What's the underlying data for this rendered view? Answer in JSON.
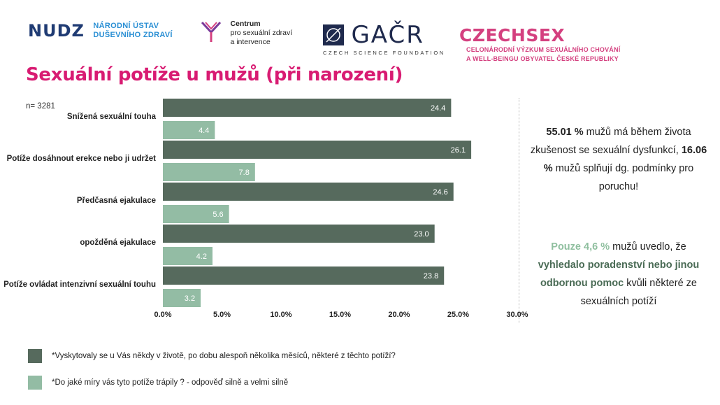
{
  "logos": {
    "nudz_mark": "NUDZ",
    "nudz_line1": "NÁRODNÍ ÚSTAV",
    "nudz_line2": "DUŠEVNÍHO ZDRAVÍ",
    "centrum_line1": "Centrum",
    "centrum_line2": "pro sexuální zdraví",
    "centrum_line3": "a intervence",
    "gacr_word": "GAČR",
    "gacr_sub": "CZECH SCIENCE FOUNDATION",
    "czechsex_word": "CZECHSEX",
    "czechsex_line1": "CELONÁRODNÍ VÝZKUM SEXUÁLNÍHO CHOVÁNÍ",
    "czechsex_line2": "A WELL-BEINGU OBYVATEL ČESKÉ REPUBLIKY"
  },
  "sample": "n= 3281",
  "side": {
    "p1_a": "55.01 %",
    "p1_b": " mužů má během života zkušenost se sexuální dysfunkcí, ",
    "p1_c": "16.06 %",
    "p1_d": " mužů splňují dg. podmínky pro poruchu!",
    "p2_a": "Pouze 4,6 %",
    "p2_b": " mužů uvedlo, že ",
    "p2_c": "vyhledalo poradenství nebo jinou odbornou pomoc",
    "p2_d": " kvůli některé ze sexuálních potíží"
  },
  "colors": {
    "dark": "#566a5d",
    "light": "#93bca4"
  },
  "chart_data": {
    "type": "bar",
    "orientation": "horizontal",
    "title": "Sexuální potíže u mužů (při narození)",
    "categories": [
      "Snížená sexuální touha",
      "Potíže dosáhnout erekce nebo ji udržet",
      "Předčasná ejakulace",
      "opožděná ejakulace",
      "Potíže ovládat intenzivní sexuální touhu"
    ],
    "series": [
      {
        "name": "*Vyskytovaly se u Vás někdy v životě, po dobu alespoň několika měsíců, některé z těchto potíží?",
        "values": [
          24.4,
          26.1,
          24.6,
          23.0,
          23.8
        ],
        "labels": [
          "24.4",
          "26.1",
          "24.6",
          "23.0",
          "23.8"
        ]
      },
      {
        "name": "*Do jaké míry vás tyto potíže trápily ? - odpověď silně a velmi silně",
        "values": [
          4.4,
          7.8,
          5.6,
          4.2,
          3.2
        ],
        "labels": [
          "4.4",
          "7.8",
          "5.6",
          "4.2",
          "3.2"
        ]
      }
    ],
    "xlim": [
      0,
      30
    ],
    "xticks": [
      0,
      5,
      10,
      15,
      20,
      25,
      30
    ],
    "xtick_labels": [
      "0.0%",
      "5.0%",
      "10.0%",
      "15.0%",
      "20.0%",
      "25.0%",
      "30.0%"
    ],
    "grid": false,
    "legend_position": "bottom-left"
  }
}
